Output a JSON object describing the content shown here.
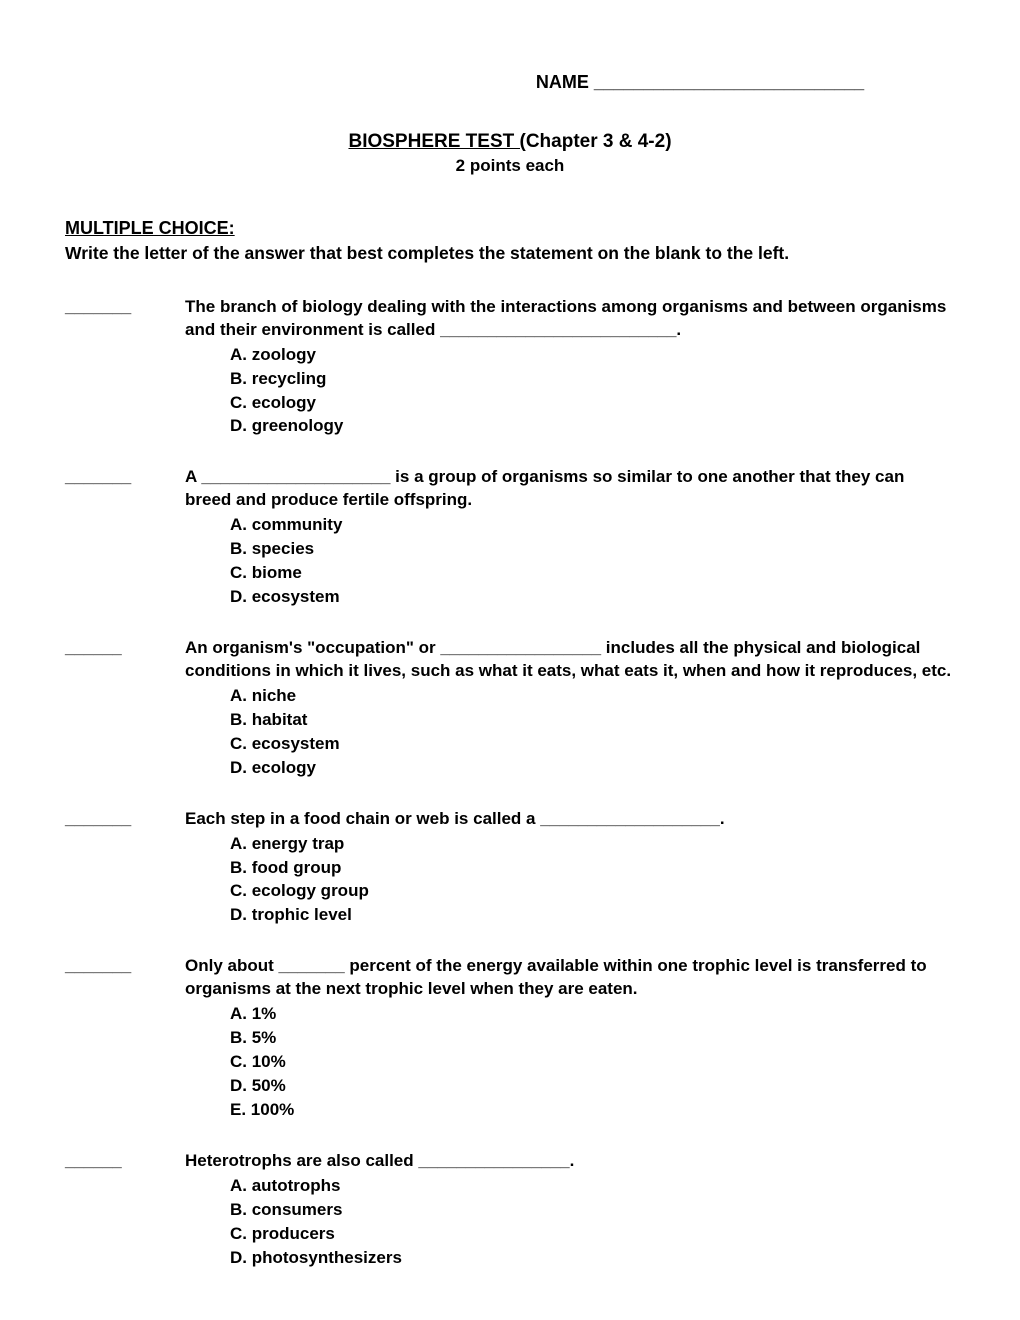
{
  "header": {
    "name_label": "NAME ___________________________"
  },
  "title": {
    "main_underlined": "BIOSPHERE TEST (",
    "main_rest": "Chapter 3 & 4-2)",
    "points": "2 points each"
  },
  "section": {
    "heading": "MULTIPLE CHOICE:",
    "instructions": "Write the letter of the answer that best completes the statement on the blank to the left."
  },
  "questions": [
    {
      "blank": "_______",
      "stem": "The branch of biology dealing with the interactions among organisms and between organisms and their environment is called _________________________.",
      "options": [
        "A. zoology",
        "B. recycling",
        "C. ecology",
        "D. greenology"
      ]
    },
    {
      "blank": "_______",
      "stem": "A ____________________ is a group of organisms so similar to one another that they can breed and produce fertile offspring.",
      "options": [
        "A. community",
        "B. species",
        "C. biome",
        "D. ecosystem"
      ]
    },
    {
      "blank": "______",
      "stem": "An organism's \"occupation\" or _________________ includes all the physical and biological conditions in which it lives, such as what it eats, what eats it, when and how it reproduces, etc.",
      "options": [
        "A. niche",
        "B. habitat",
        "C. ecosystem",
        "D. ecology"
      ]
    },
    {
      "blank": "_______",
      "stem": "Each step in a food chain or web is called a ___________________.",
      "options": [
        "A. energy trap",
        "B. food group",
        "C. ecology group",
        "D. trophic level"
      ]
    },
    {
      "blank": "_______",
      "stem": "Only about _______ percent of the energy available within one trophic level is transferred to organisms at the next trophic level when they are eaten.",
      "options": [
        "A. 1%",
        "B. 5%",
        "C. 10%",
        "D. 50%",
        "E. 100%"
      ]
    },
    {
      "blank": "______",
      "stem": "Heterotrophs are also called ________________.",
      "options": [
        "A. autotrophs",
        "B. consumers",
        "C. producers",
        "D. photosynthesizers"
      ]
    }
  ]
}
